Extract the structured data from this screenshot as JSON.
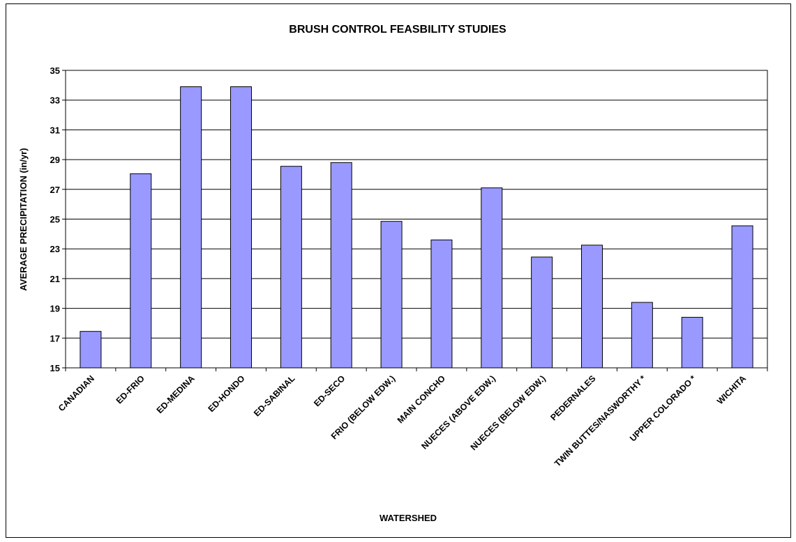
{
  "chart_data": {
    "type": "bar",
    "title": "BRUSH CONTROL FEASBILITY STUDIES",
    "xlabel": "WATERSHED",
    "ylabel": "AVERAGE PRECIPITATION (in/yr)",
    "ylim": [
      15,
      35
    ],
    "yticks": [
      "15",
      "17",
      "19",
      "21",
      "23",
      "25",
      "27",
      "29",
      "31",
      "33",
      "35"
    ],
    "grid": true,
    "bar_color": "#9999ff",
    "categories": [
      "CANADIAN",
      "ED-FRIO",
      "ED-MEDINA",
      "ED-HONDO",
      "ED-SABINAL",
      "ED-SECO",
      "FRIO (BELOW EDW.)",
      "MAIN CONCHO",
      "NUECES (ABOVE EDW.)",
      "NUECES (BELOW EDW.)",
      "PEDERNALES",
      "TWIN BUTTES/NASWORTHY *",
      "UPPER COLORADO *",
      "WICHITA"
    ],
    "values": [
      17.45,
      28.05,
      33.9,
      33.9,
      28.55,
      28.8,
      24.85,
      23.6,
      27.1,
      22.45,
      23.25,
      19.4,
      18.4,
      24.55
    ]
  }
}
